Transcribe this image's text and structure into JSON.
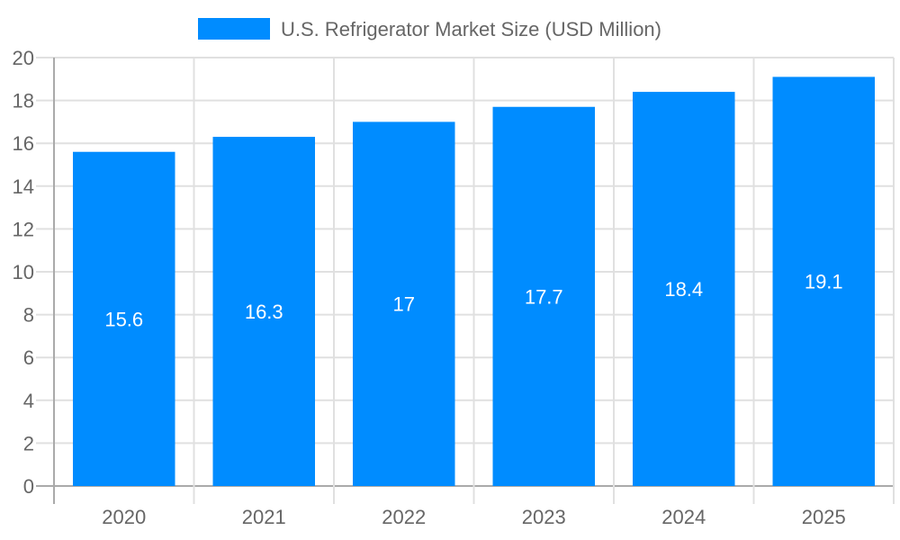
{
  "chart_data": {
    "type": "bar",
    "title": "",
    "legend": [
      {
        "label": "U.S. Refrigerator Market Size (USD Million)",
        "color": "#008cff"
      }
    ],
    "legend_position": "top",
    "categories": [
      "2020",
      "2021",
      "2022",
      "2023",
      "2024",
      "2025"
    ],
    "series": [
      {
        "name": "U.S. Refrigerator Market Size (USD Million)",
        "values": [
          15.6,
          16.3,
          17,
          17.7,
          18.4,
          19.1
        ],
        "color": "#008cff"
      }
    ],
    "data_labels": [
      "15.6",
      "16.3",
      "17",
      "17.7",
      "18.4",
      "19.1"
    ],
    "yticks": [
      "0",
      "2",
      "4",
      "6",
      "8",
      "10",
      "12",
      "14",
      "16",
      "18",
      "20"
    ],
    "ylim": [
      0,
      20
    ],
    "xlabel": "",
    "ylabel": "",
    "grid": true
  }
}
